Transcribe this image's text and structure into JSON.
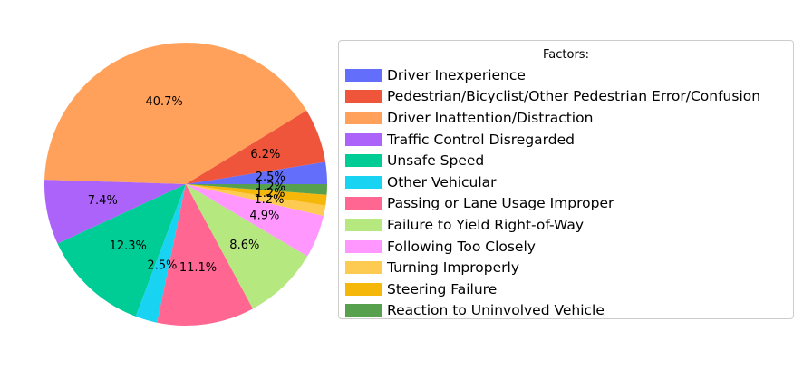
{
  "chart_data": {
    "type": "pie",
    "legend_title": "Factors:",
    "legend_placement": "right",
    "start_angle_deg": 0,
    "direction": "counterclockwise",
    "slices": [
      {
        "label": "Driver Inexperience",
        "value": 2.5,
        "pct_label": "2.5%",
        "color": "#636efa"
      },
      {
        "label": "Pedestrian/Bicyclist/Other Pedestrian Error/Confusion",
        "value": 6.2,
        "pct_label": "6.2%",
        "color": "#ef553b"
      },
      {
        "label": "Driver Inattention/Distraction",
        "value": 40.7,
        "pct_label": "40.7%",
        "color": "#ffa15a"
      },
      {
        "label": "Traffic Control Disregarded",
        "value": 7.4,
        "pct_label": "7.4%",
        "color": "#ab63fa"
      },
      {
        "label": "Unsafe Speed",
        "value": 12.3,
        "pct_label": "12.3%",
        "color": "#00cc96"
      },
      {
        "label": "Other Vehicular",
        "value": 2.5,
        "pct_label": "2.5%",
        "color": "#19d3f3"
      },
      {
        "label": "Passing or Lane Usage Improper",
        "value": 11.1,
        "pct_label": "11.1%",
        "color": "#ff6692"
      },
      {
        "label": "Failure to Yield Right-of-Way",
        "value": 8.6,
        "pct_label": "8.6%",
        "color": "#b6e880"
      },
      {
        "label": "Following Too Closely",
        "value": 4.9,
        "pct_label": "4.9%",
        "color": "#ff97ff"
      },
      {
        "label": "Turning Improperly",
        "value": 1.2,
        "pct_label": "1.2%",
        "color": "#fecb52"
      },
      {
        "label": "Steering Failure",
        "value": 1.2,
        "pct_label": "1.2%",
        "color": "#f5b70a"
      },
      {
        "label": "Reaction to Uninvolved Vehicle",
        "value": 1.2,
        "pct_label": "1.2%",
        "color": "#57a04d"
      }
    ]
  }
}
